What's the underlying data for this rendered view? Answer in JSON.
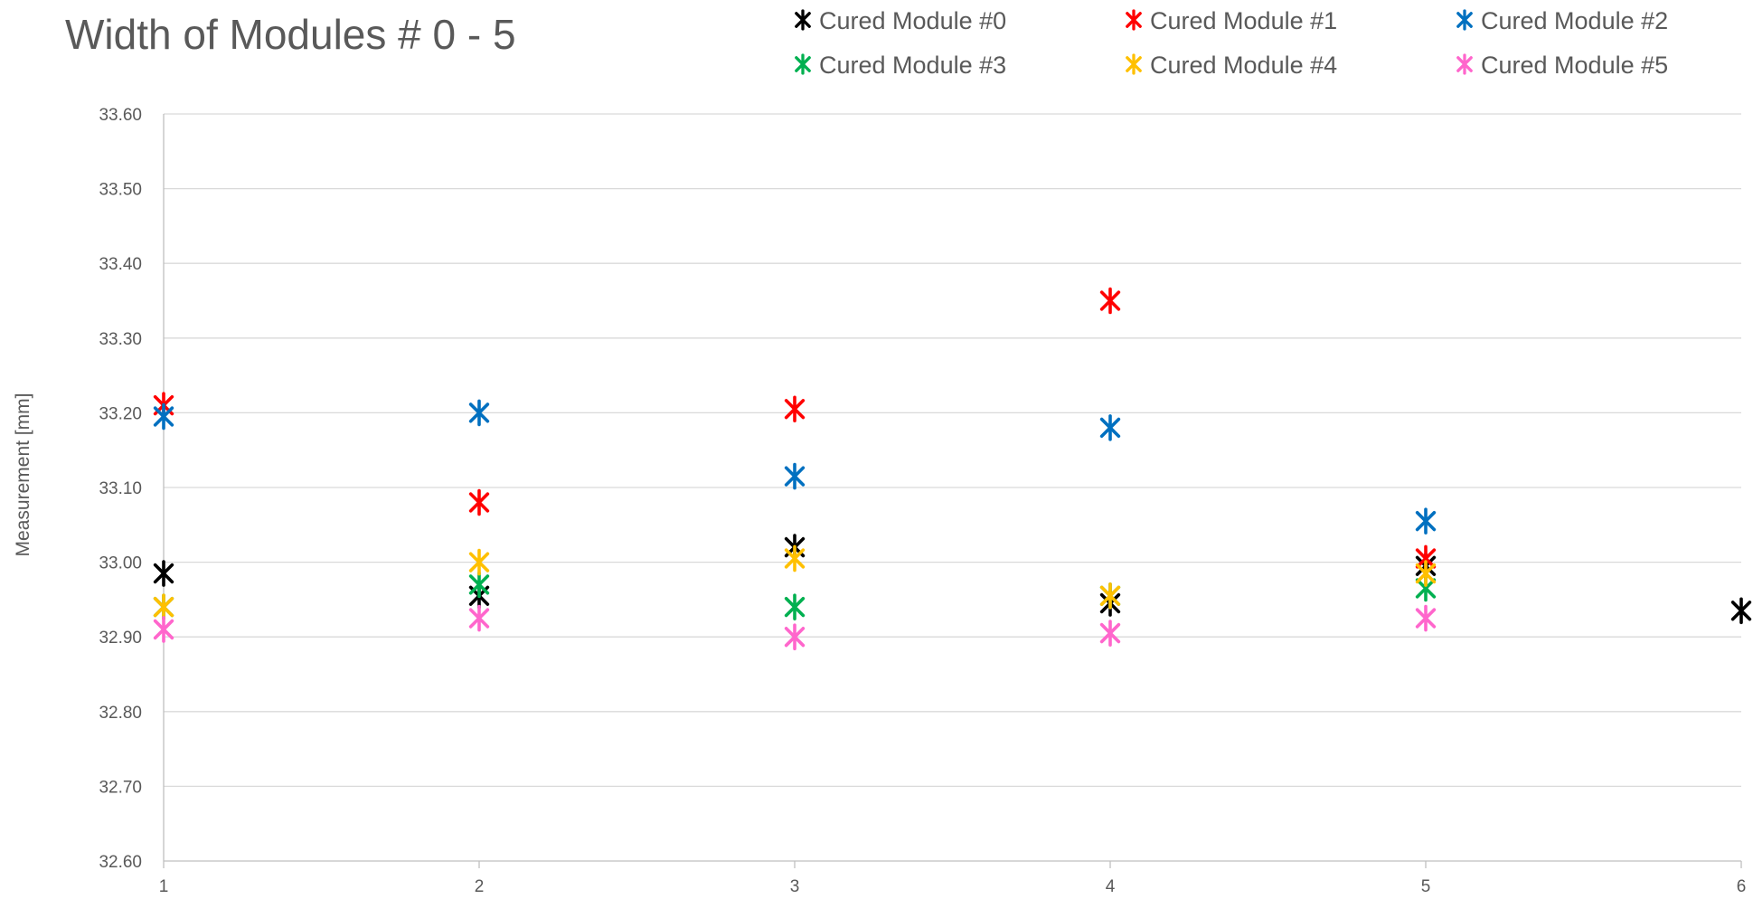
{
  "chart_data": {
    "type": "scatter",
    "title": "Width of Modules # 0 - 5",
    "xlabel": "",
    "ylabel": "Measurement  [mm]",
    "xlim": [
      1,
      6
    ],
    "ylim": [
      32.6,
      33.6
    ],
    "x_ticks": [
      "1",
      "2",
      "3",
      "4",
      "5",
      "6"
    ],
    "y_ticks": [
      "32.60",
      "32.70",
      "32.80",
      "32.90",
      "33.00",
      "33.10",
      "33.20",
      "33.30",
      "33.40",
      "33.50",
      "33.60"
    ],
    "grid": true,
    "legend_position": "top-right",
    "marker": "asterisk",
    "series": [
      {
        "name": "Cured Module #0",
        "color": "#000000",
        "x": [
          1,
          2,
          3,
          4,
          5,
          6
        ],
        "y": [
          32.985,
          32.955,
          33.02,
          32.945,
          32.995,
          32.935
        ]
      },
      {
        "name": "Cured Module #1",
        "color": "#ff0000",
        "x": [
          1,
          2,
          3,
          4,
          5
        ],
        "y": [
          33.21,
          33.08,
          33.205,
          33.35,
          33.005
        ]
      },
      {
        "name": "Cured Module #2",
        "color": "#0070c0",
        "x": [
          1,
          2,
          3,
          4,
          5
        ],
        "y": [
          33.195,
          33.2,
          33.115,
          33.18,
          33.055
        ]
      },
      {
        "name": "Cured Module #3",
        "color": "#00b050",
        "x": [
          1,
          2,
          3,
          4,
          5
        ],
        "y": [
          32.94,
          32.97,
          32.94,
          32.955,
          32.965
        ]
      },
      {
        "name": "Cured Module #4",
        "color": "#ffc000",
        "x": [
          1,
          2,
          3,
          4,
          5
        ],
        "y": [
          32.94,
          33.0,
          33.005,
          32.955,
          32.985
        ]
      },
      {
        "name": "Cured Module #5",
        "color": "#ff66cc",
        "x": [
          1,
          2,
          3,
          4,
          5
        ],
        "y": [
          32.91,
          32.925,
          32.9,
          32.905,
          32.925
        ]
      }
    ]
  }
}
